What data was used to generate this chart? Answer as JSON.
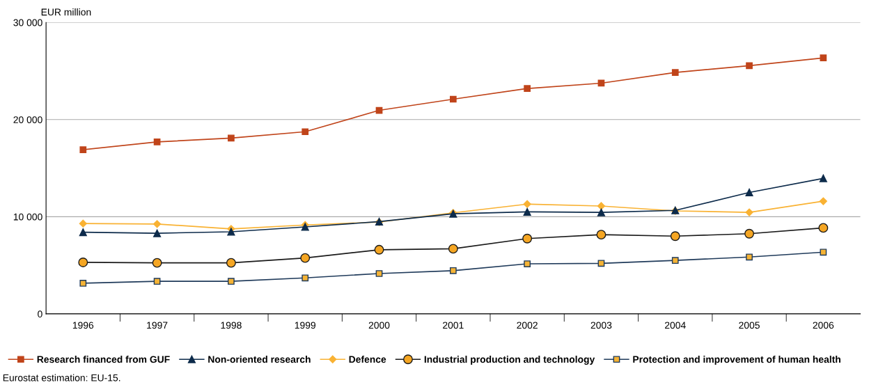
{
  "chart_data": {
    "type": "line",
    "ylabel": "EUR million",
    "categories": [
      "1996",
      "1997",
      "1998",
      "1999",
      "2000",
      "2001",
      "2002",
      "2003",
      "2004",
      "2005",
      "2006"
    ],
    "series": [
      {
        "name": "Research financed from GUF",
        "color": "#c0441a",
        "marker": "square",
        "values": [
          16900,
          17700,
          18100,
          18750,
          20950,
          22100,
          23200,
          23750,
          24850,
          25550,
          26350
        ]
      },
      {
        "name": "Non-oriented research",
        "color": "#0d2b4b",
        "marker": "triangle",
        "values": [
          8400,
          8300,
          8450,
          8950,
          9500,
          10300,
          10500,
          10450,
          10650,
          12500,
          13950
        ]
      },
      {
        "name": "Defence",
        "color": "#f9b233",
        "marker": "diamond",
        "values": [
          9300,
          9250,
          8750,
          9150,
          9450,
          10400,
          11300,
          11100,
          10600,
          10450,
          11600
        ]
      },
      {
        "name": "Industrial production and technology",
        "color": "#f5a623",
        "marker": "circle",
        "values": [
          5300,
          5250,
          5250,
          5750,
          6600,
          6700,
          7750,
          8150,
          8000,
          8250,
          8850
        ]
      },
      {
        "name": "Protection and improvement of human health",
        "color": "#f5b335",
        "marker": "square",
        "values": [
          3150,
          3350,
          3350,
          3700,
          4150,
          4450,
          5150,
          5200,
          5500,
          5850,
          6350
        ]
      }
    ],
    "ylim": [
      0,
      30000
    ],
    "yticks": [
      {
        "value": 0,
        "label": "0"
      },
      {
        "value": 10000,
        "label": "10 000"
      },
      {
        "value": 20000,
        "label": "20 000"
      },
      {
        "value": 30000,
        "label": "30 000"
      }
    ],
    "grid": "y",
    "legend": "bottom",
    "line_style": "solid",
    "annotations": [
      "Eurostat estimation: EU-15."
    ]
  }
}
